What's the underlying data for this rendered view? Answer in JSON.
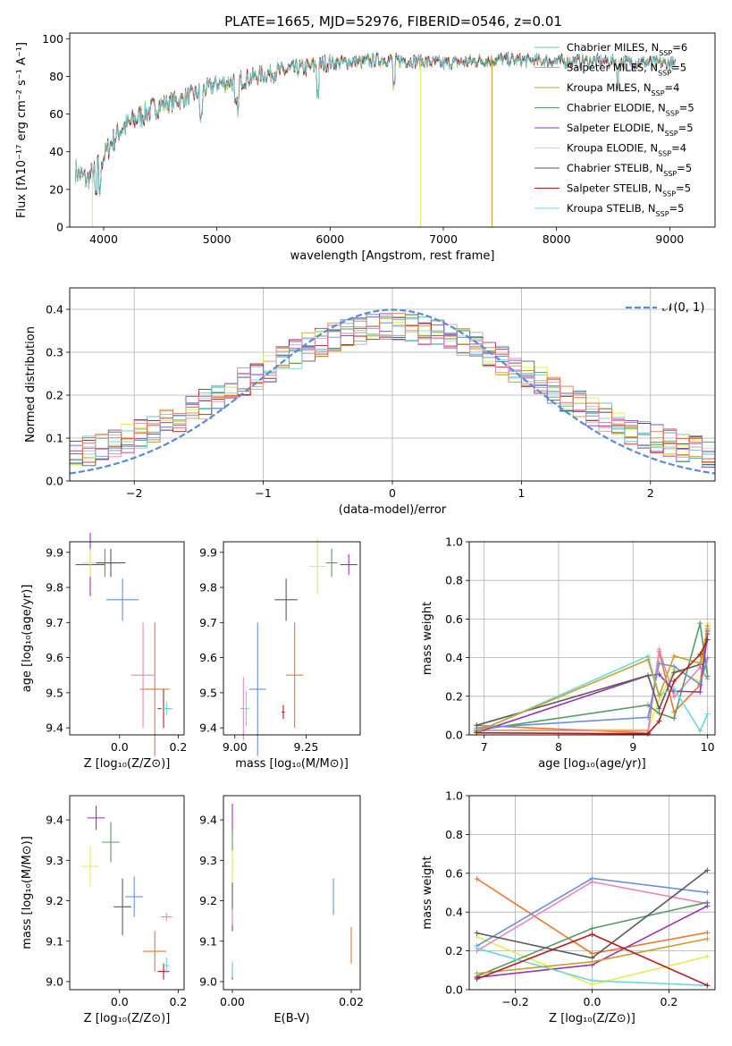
{
  "colors": [
    "#6ec4b8",
    "#c5a0c8",
    "#c8a02c",
    "#5a9a64",
    "#9a32b4",
    "#e4ec50",
    "#5a5a5a",
    "#b41e1e",
    "#6cd8dc",
    "#6890dc",
    "#e87830",
    "#e888b8"
  ],
  "chart_data": [
    {
      "type": "line",
      "name": "spectrum",
      "title": "PLATE=1665, MJD=52976, FIBERID=0546, z=0.01",
      "xlabel": "wavelength [Angstrom, rest frame]",
      "ylabel": "Flux [fλ10⁻¹⁷ erg cm⁻² s⁻¹ A⁻¹]",
      "xlim": [
        3700,
        9400
      ],
      "ylim": [
        0,
        103
      ],
      "xticks": [
        "4000",
        "5000",
        "6000",
        "7000",
        "8000",
        "9000"
      ],
      "yticks": [
        "0",
        "20",
        "40",
        "60",
        "80",
        "100"
      ],
      "grid": false,
      "legend_position": "top-right",
      "series": [
        {
          "name": "Chabrier MILES, N_SSP=6"
        },
        {
          "name": "Salpeter MILES, N_SSP=5"
        },
        {
          "name": "Kroupa MILES, N_SSP=4"
        },
        {
          "name": "Chabrier ELODIE, N_SSP=5"
        },
        {
          "name": "Salpeter ELODIE, N_SSP=5"
        },
        {
          "name": "Kroupa ELODIE, N_SSP=4"
        },
        {
          "name": "Chabrier STELIB, N_SSP=5"
        },
        {
          "name": "Salpeter STELIB, N_SSP=5"
        },
        {
          "name": "Kroupa STELIB, N_SSP=5"
        }
      ],
      "continuum": [
        [
          3750,
          30
        ],
        [
          3850,
          25
        ],
        [
          3950,
          32
        ],
        [
          4050,
          43
        ],
        [
          4150,
          52
        ],
        [
          4300,
          58
        ],
        [
          4500,
          65
        ],
        [
          4700,
          68
        ],
        [
          5000,
          76
        ],
        [
          5200,
          78
        ],
        [
          5500,
          82
        ],
        [
          5800,
          85
        ],
        [
          6000,
          87
        ],
        [
          6300,
          88
        ],
        [
          6500,
          89
        ],
        [
          7000,
          87
        ],
        [
          7500,
          89
        ],
        [
          8000,
          88
        ],
        [
          8500,
          88
        ],
        [
          9000,
          87
        ],
        [
          9050,
          86
        ]
      ],
      "dropouts": [
        [
          3900,
          "Kroupa ELODIE"
        ],
        [
          6800,
          "Kroupa ELODIE"
        ],
        [
          7430,
          "Kroupa MILES"
        ]
      ]
    },
    {
      "type": "bar",
      "name": "residual-histogram",
      "xlabel": "(data-model)/error",
      "ylabel": "Normed distribution",
      "xlim": [
        -2.5,
        2.5
      ],
      "ylim": [
        0,
        0.45
      ],
      "xticks": [
        "−2",
        "−1",
        "0",
        "1",
        "2"
      ],
      "yticks": [
        "0.0",
        "0.1",
        "0.2",
        "0.3",
        "0.4"
      ],
      "grid": true,
      "legend_position": "top-right",
      "legend": "𝒩(0, 1)",
      "gaussian": {
        "mean": 0,
        "sigma": 1
      }
    },
    {
      "type": "scatter",
      "name": "age-vs-z",
      "xlabel": "Z [log₁₀(Z/Z⊙)]",
      "ylabel": "age  [log₁₀(age/yr)]",
      "xlim": [
        -0.17,
        0.22
      ],
      "ylim": [
        9.38,
        9.93
      ],
      "xticks": [
        "0.0",
        "0.2"
      ],
      "yticks": [
        "9.4",
        "9.5",
        "9.6",
        "9.7",
        "9.8",
        "9.9"
      ],
      "points": [
        {
          "x": -0.1,
          "y": 9.865,
          "dx": 0.05,
          "dy": 0.09
        },
        {
          "x": -0.05,
          "y": 9.87,
          "dx": 0.04,
          "dy": 0.04
        },
        {
          "x": -0.1,
          "y": 9.87,
          "dx": 0.03,
          "dy": 0.04
        },
        {
          "x": -0.03,
          "y": 9.87,
          "dx": 0.05,
          "dy": 0.04
        },
        {
          "x": 0.01,
          "y": 9.765,
          "dx": 0.055,
          "dy": 0.06
        },
        {
          "x": 0.12,
          "y": 9.51,
          "dx": 0.05,
          "dy": 0.19
        },
        {
          "x": 0.08,
          "y": 9.55,
          "dx": 0.04,
          "dy": 0.15
        },
        {
          "x": 0.15,
          "y": 9.455,
          "dx": 0.02,
          "dy": 0.055
        },
        {
          "x": 0.16,
          "y": 9.455,
          "dx": 0.02,
          "dy": 0.02
        }
      ]
    },
    {
      "type": "scatter",
      "name": "age-vs-mass",
      "xlabel": "mass [log₁₀(M/M⊙)]",
      "ylabel": "",
      "xlim": [
        8.96,
        9.44
      ],
      "ylim": [
        9.38,
        9.93
      ],
      "xticks": [
        "9.00",
        "9.25"
      ],
      "yticks": [
        "9.4",
        "9.5",
        "9.6",
        "9.7",
        "9.8",
        "9.9"
      ],
      "points": [
        {
          "x": 9.4,
          "y": 9.865,
          "dx": 0.03,
          "dy": 0.03
        },
        {
          "x": 9.34,
          "y": 9.87,
          "dx": 0.02,
          "dy": 0.04
        },
        {
          "x": 9.29,
          "y": 9.86,
          "dx": 0.03,
          "dy": 0.08
        },
        {
          "x": 9.18,
          "y": 9.765,
          "dx": 0.04,
          "dy": 0.06
        },
        {
          "x": 9.08,
          "y": 9.51,
          "dx": 0.03,
          "dy": 0.19
        },
        {
          "x": 9.21,
          "y": 9.55,
          "dx": 0.03,
          "dy": 0.15
        },
        {
          "x": 9.03,
          "y": 9.455,
          "dx": 0.01,
          "dy": 0.09
        },
        {
          "x": 9.17,
          "y": 9.445,
          "dx": 0.005,
          "dy": 0.02
        },
        {
          "x": 9.04,
          "y": 9.455,
          "dx": 0.01,
          "dy": 0.05
        }
      ]
    },
    {
      "type": "line",
      "name": "mass-weight-vs-age",
      "xlabel": "age  [log₁₀(age/yr)]",
      "ylabel": "mass weight",
      "xlim": [
        6.8,
        10.1
      ],
      "ylim": [
        0,
        1.0
      ],
      "xticks": [
        "7",
        "8",
        "9",
        "10"
      ],
      "yticks": [
        "0.0",
        "0.2",
        "0.4",
        "0.6",
        "0.8",
        "1.0"
      ],
      "grid": true
    },
    {
      "type": "scatter",
      "name": "mass-vs-z",
      "xlabel": "Z [log₁₀(Z/Z⊙)]",
      "ylabel": "mass [log₁₀(M/M⊙)]",
      "xlim": [
        -0.17,
        0.22
      ],
      "ylim": [
        8.98,
        9.46
      ],
      "xticks": [
        "0.0",
        "0.2"
      ],
      "yticks": [
        "9.0",
        "9.1",
        "9.2",
        "9.3",
        "9.4"
      ],
      "points": [
        {
          "x": -0.08,
          "y": 9.405,
          "dx": 0.03,
          "dy": 0.03
        },
        {
          "x": -0.03,
          "y": 9.345,
          "dx": 0.03,
          "dy": 0.05
        },
        {
          "x": -0.1,
          "y": 9.285,
          "dx": 0.03,
          "dy": 0.05
        },
        {
          "x": 0.01,
          "y": 9.185,
          "dx": 0.03,
          "dy": 0.07
        },
        {
          "x": 0.05,
          "y": 9.21,
          "dx": 0.03,
          "dy": 0.05
        },
        {
          "x": 0.12,
          "y": 9.075,
          "dx": 0.04,
          "dy": 0.05
        },
        {
          "x": 0.16,
          "y": 9.16,
          "dx": 0.02,
          "dy": 0.01
        },
        {
          "x": 0.15,
          "y": 9.025,
          "dx": 0.02,
          "dy": 0.02
        },
        {
          "x": 0.16,
          "y": 9.04,
          "dx": 0.01,
          "dy": 0.02
        }
      ]
    },
    {
      "type": "scatter",
      "name": "mass-vs-ebv",
      "xlabel": "E(B-V)",
      "ylabel": "",
      "xlim": [
        -0.0015,
        0.0215
      ],
      "ylim": [
        8.98,
        9.46
      ],
      "xticks": [
        "0.00",
        "0.02"
      ],
      "yticks": [
        "9.0",
        "9.1",
        "9.2",
        "9.3",
        "9.4"
      ],
      "points": [
        {
          "x": 0.0,
          "y": 9.405,
          "dx": 0,
          "dy": 0.035
        },
        {
          "x": 0.0,
          "y": 9.345,
          "dx": 0,
          "dy": 0.03
        },
        {
          "x": 0.0,
          "y": 9.285,
          "dx": 0,
          "dy": 0.04
        },
        {
          "x": 0.0,
          "y": 9.185,
          "dx": 0,
          "dy": 0.06
        },
        {
          "x": 0.017,
          "y": 9.21,
          "dx": 0,
          "dy": 0.045
        },
        {
          "x": 0.02,
          "y": 9.09,
          "dx": 0,
          "dy": 0.045
        },
        {
          "x": 0.0,
          "y": 9.16,
          "dx": 0,
          "dy": 0.02
        },
        {
          "x": 0.0,
          "y": 9.025,
          "dx": 0,
          "dy": 0.02
        },
        {
          "x": 0.0,
          "y": 9.03,
          "dx": 0,
          "dy": 0.02
        }
      ]
    },
    {
      "type": "line",
      "name": "mass-weight-vs-z",
      "xlabel": "Z [log₁₀(Z/Z⊙)]",
      "ylabel": "mass weight",
      "xlim": [
        -0.32,
        0.32
      ],
      "ylim": [
        0,
        1.0
      ],
      "xticks": [
        "−0.2",
        "0.0",
        "0.2"
      ],
      "yticks": [
        "0.0",
        "0.2",
        "0.4",
        "0.6",
        "0.8",
        "1.0"
      ],
      "grid": true
    }
  ]
}
